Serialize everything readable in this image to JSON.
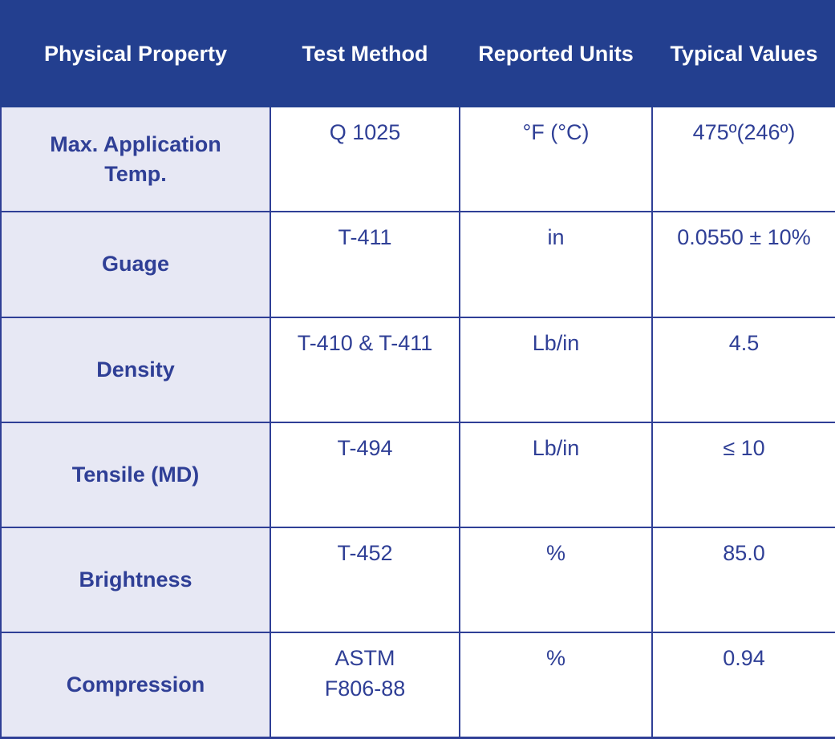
{
  "table": {
    "headers": [
      "Physical Property",
      "Test Method",
      "Reported Units",
      "Typical Values"
    ],
    "rows": [
      {
        "property": "Max. Application\nTemp.",
        "method": "Q 1025",
        "units": "°F (°C)",
        "value": "475º(246º)"
      },
      {
        "property": "Guage",
        "method": "T-411",
        "units": "in",
        "value": "0.0550 ± 10%"
      },
      {
        "property": "Density",
        "method": "T-410 & T-411",
        "units": "Lb/in",
        "value": "4.5"
      },
      {
        "property": "Tensile (MD)",
        "method": "T-494",
        "units": "Lb/in",
        "value": "≤ 10"
      },
      {
        "property": "Brightness",
        "method": "T-452",
        "units": "%",
        "value": "85.0"
      },
      {
        "property": "Compression",
        "method": "ASTM\nF806-88",
        "units": "%",
        "value": "0.94"
      }
    ]
  },
  "colors": {
    "header_bg": "#233f8f",
    "header_text": "#ffffff",
    "text": "#2f3f96",
    "property_column_bg": "#e7e8f4",
    "border": "#2f3f96"
  }
}
